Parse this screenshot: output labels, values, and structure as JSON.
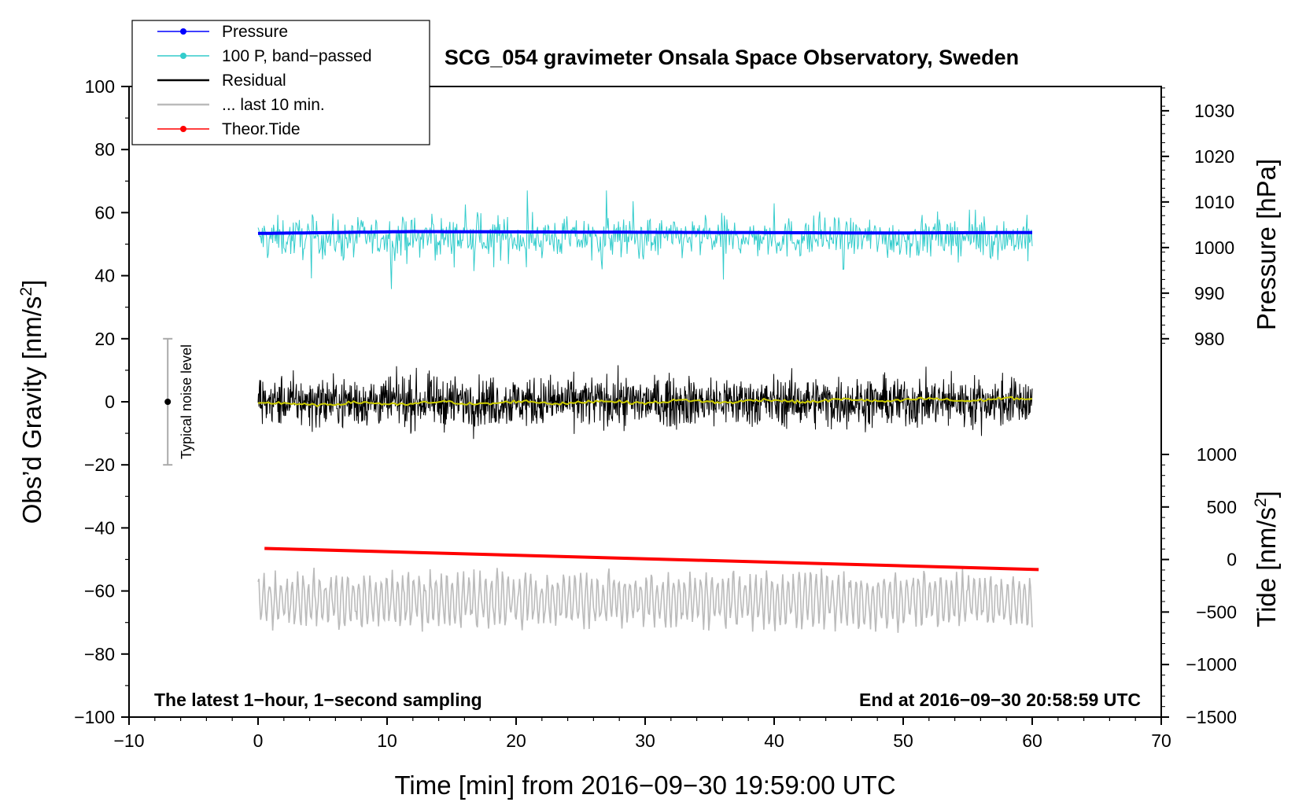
{
  "chart_data": {
    "type": "line",
    "title": "SCG_054 gravimeter Onsala Space Observatory, Sweden",
    "xlabel": "Time [min] from 2016−09−30 19:59:00 UTC",
    "ylabel_left_pre": "Obs’d Gravity [nm/s",
    "ylabel_left_sup": "2",
    "ylabel_left_post": "]",
    "ylabel_right_pressure": "Pressure [hPa]",
    "ylabel_right_tide_pre": "Tide [nm/s",
    "ylabel_right_tide_sup": "2",
    "ylabel_right_tide_post": "]",
    "xlim": [
      -10,
      70
    ],
    "ylim": [
      -100,
      100
    ],
    "x_ticks": [
      -10,
      0,
      10,
      20,
      30,
      40,
      50,
      60,
      70
    ],
    "x_tick_labels": [
      "−10",
      "0",
      "10",
      "20",
      "30",
      "40",
      "50",
      "60",
      "70"
    ],
    "y_ticks": [
      -100,
      -80,
      -60,
      -40,
      -20,
      0,
      20,
      40,
      60,
      80,
      100
    ],
    "y_tick_labels": [
      "−100",
      "−80",
      "−60",
      "−40",
      "−20",
      "0",
      "20",
      "40",
      "60",
      "80",
      "100"
    ],
    "pressure_axis": {
      "ticks": [
        980,
        990,
        1000,
        1010,
        1020,
        1030
      ],
      "tick_labels": [
        "980",
        "990",
        "1000",
        "1010",
        "1020",
        "1030"
      ],
      "gravity_at_980": 20,
      "gravity_at_1030": 92.3
    },
    "tide_axis": {
      "ticks": [
        -1500,
        -1000,
        -500,
        0,
        500,
        1000
      ],
      "tick_labels": [
        "−1500",
        "−1000",
        "−500",
        "0",
        "500",
        "1000"
      ],
      "gravity_at_minus1500": -100,
      "gravity_at_1000": -16.7
    },
    "legend": [
      {
        "label": "Pressure",
        "color": "#0000ff",
        "marker": true
      },
      {
        "label": "100 P, band−passed",
        "color": "#33cccc",
        "marker": true
      },
      {
        "label": "Residual",
        "color": "#000000",
        "marker": false
      },
      {
        "label": "... last 10 min.",
        "color": "#bbbbbb",
        "marker": false
      },
      {
        "label": "Theor.Tide",
        "color": "#ff0000",
        "marker": true
      }
    ],
    "series": [
      {
        "name": "Pressure",
        "color": "#0000ff",
        "x_range": [
          0,
          60
        ],
        "values_hPa": [
          1003.1,
          1003.5,
          1003.4,
          1003.3,
          1003.2,
          1003.3
        ]
      },
      {
        "name": "100 P, band−passed",
        "color": "#33cccc",
        "x_range": [
          0,
          60
        ],
        "center": 52,
        "amplitude_approx": 10
      },
      {
        "name": "Residual",
        "color": "#000000",
        "x_range": [
          0,
          60
        ],
        "center": 0,
        "amplitude_approx": 12
      },
      {
        "name": "Residual smoothed",
        "color": "#cccc00",
        "x_range": [
          0,
          60
        ],
        "center": 0,
        "amplitude_approx": 1
      },
      {
        "name": "... last 10 min.",
        "color": "#bbbbbb",
        "x_range": [
          0,
          60
        ],
        "center": -63,
        "amplitude_approx": 8
      },
      {
        "name": "Theor.Tide",
        "color": "#ff0000",
        "x": [
          0.5,
          60.5
        ],
        "y": [
          -46.5,
          -53.2
        ]
      }
    ],
    "noise_level": {
      "label": "Typical noise level",
      "x": -7,
      "center": 0,
      "range": [
        -20,
        20
      ]
    },
    "note_left": "The latest 1−hour, 1−second sampling",
    "note_right": "End at 2016−09−30 20:58:59 UTC"
  }
}
